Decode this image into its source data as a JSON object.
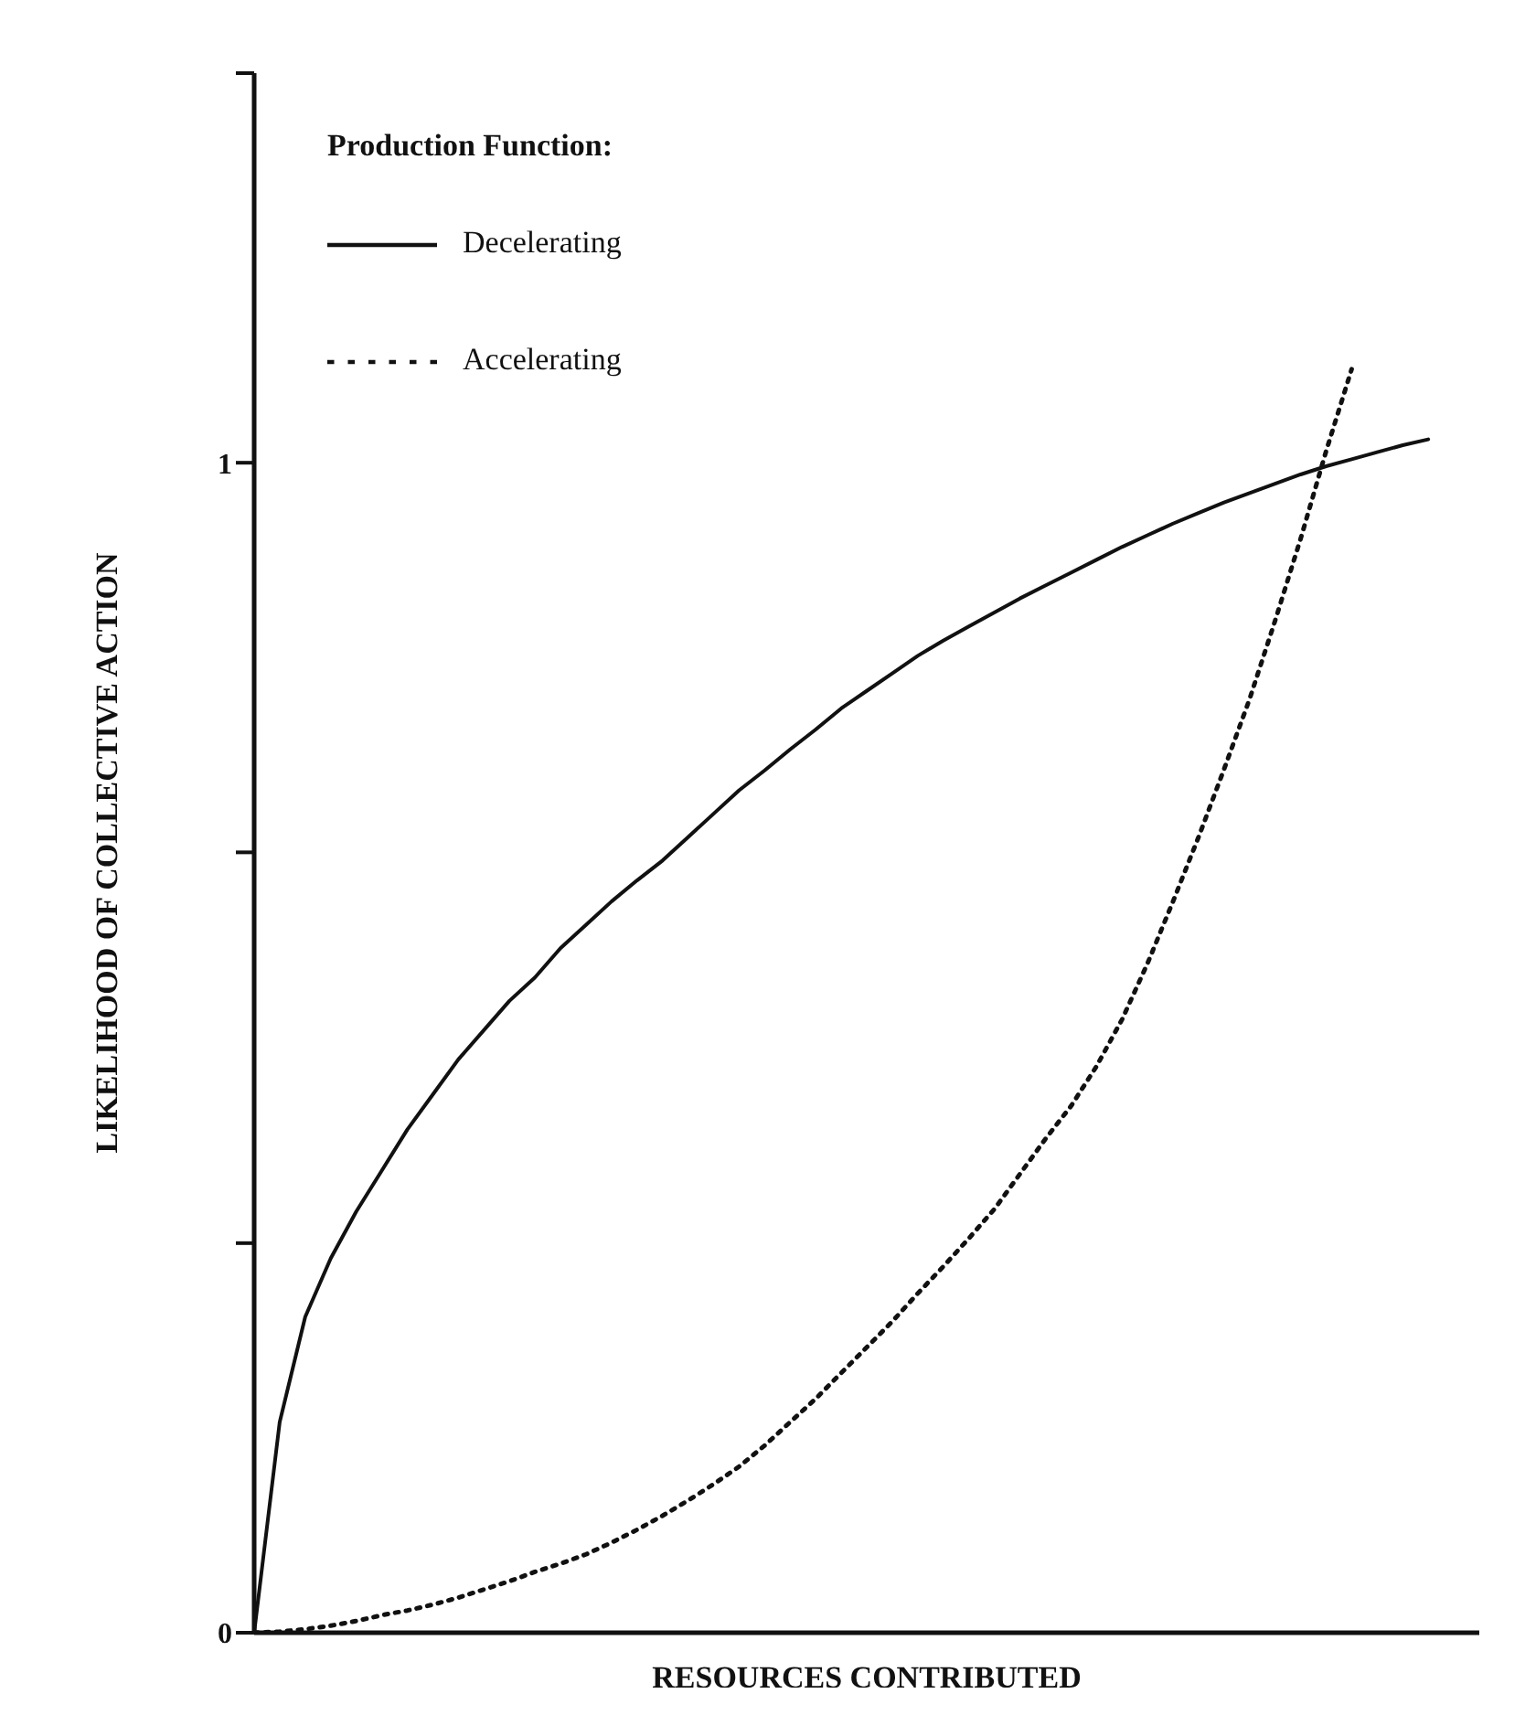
{
  "chart_data": {
    "type": "line",
    "xlabel": "RESOURCES CONTRIBUTED",
    "ylabel": "LIKELIHOOD OF COLLECTIVE ACTION",
    "legend_title": "Production Function:",
    "legend": "top left",
    "marker": "none",
    "ylim": [
      0,
      1.333
    ],
    "yticks": [
      0,
      {
        "value": 0.333,
        "label": null
      },
      {
        "value": 0.667,
        "label": null
      },
      1,
      {
        "value": 1.333,
        "label": null
      }
    ],
    "categories": [
      null,
      null,
      null,
      null,
      null,
      null,
      null,
      null,
      null,
      null,
      null,
      null,
      null,
      null,
      null,
      null,
      null,
      null,
      null,
      null,
      null,
      null,
      null,
      null,
      null,
      null,
      null,
      null,
      null,
      null,
      null,
      null,
      null,
      null,
      null,
      null,
      null,
      null,
      null,
      null,
      null,
      null,
      null,
      null,
      null,
      null,
      null,
      null,
      null
    ],
    "series": [
      {
        "name": "Decelerating",
        "color": "#111111",
        "line_style": "solid",
        "values": [
          0,
          0.18,
          0.27,
          0.32,
          0.36,
          0.395,
          0.43,
          0.46,
          0.49,
          0.515,
          0.54,
          0.56,
          0.585,
          0.605,
          0.625,
          0.643,
          0.66,
          0.68,
          0.7,
          0.72,
          0.737,
          0.755,
          0.772,
          0.79,
          0.805,
          0.82,
          0.835,
          0.848,
          0.86,
          0.872,
          0.884,
          0.895,
          0.906,
          0.917,
          0.928,
          0.938,
          0.948,
          0.957,
          0.966,
          0.974,
          0.982,
          0.99,
          0.997,
          1.003,
          1.009,
          1.015,
          1.02,
          null,
          null
        ]
      },
      {
        "name": "Accelerating",
        "color": "#111111",
        "line_style": "dotted",
        "values": [
          0,
          0.001,
          0.003,
          0.006,
          0.01,
          0.015,
          0.019,
          0.024,
          0.03,
          0.037,
          0.044,
          0.052,
          0.059,
          0.067,
          0.077,
          0.088,
          0.1,
          0.113,
          0.127,
          0.142,
          0.16,
          0.18,
          0.2,
          0.222,
          0.244,
          0.266,
          0.29,
          0.313,
          0.337,
          0.362,
          0.392,
          0.422,
          0.45,
          0.484,
          0.524,
          0.572,
          0.625,
          0.68,
          0.738,
          0.798,
          0.865,
          0.935,
          1.01,
          1.08,
          null,
          null,
          null,
          null,
          null
        ]
      }
    ]
  }
}
